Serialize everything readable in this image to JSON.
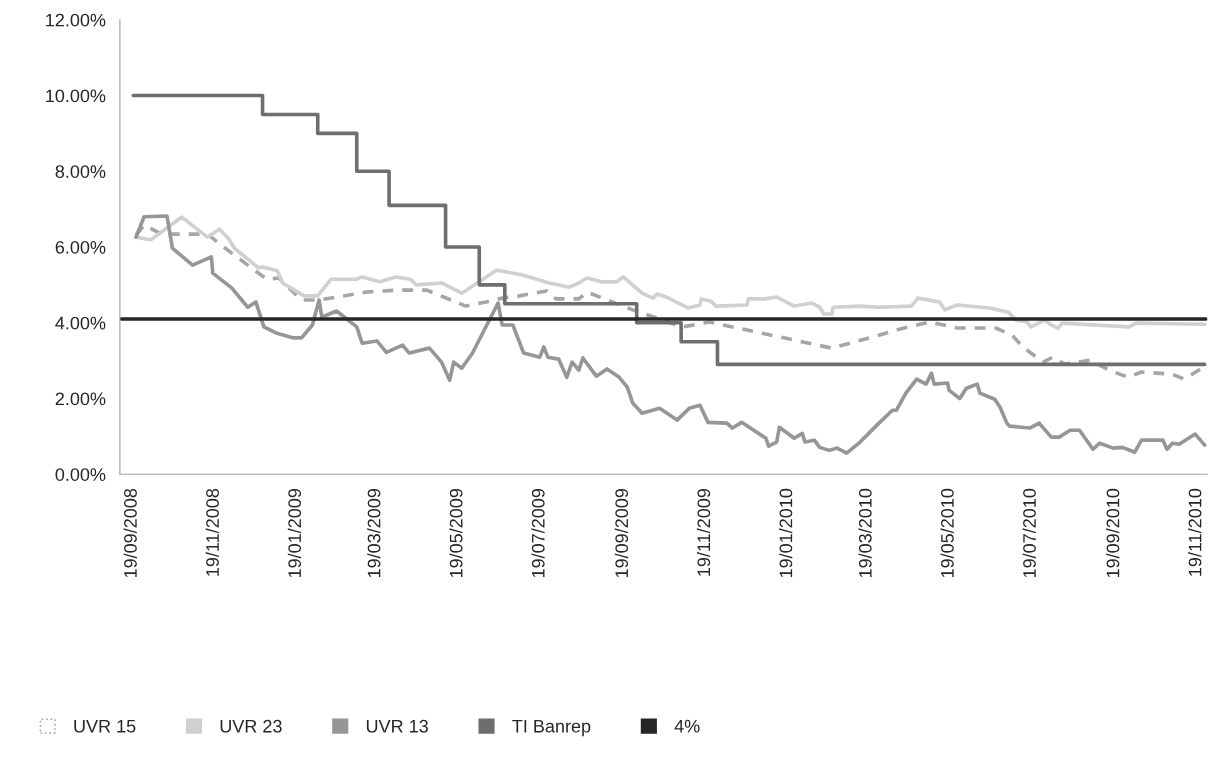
{
  "chart_data": {
    "type": "line",
    "xlim": [
      "2008-09-10",
      "2010-11-27"
    ],
    "xticks": [
      {
        "value": "2008-09-19",
        "label": "19/09/2008"
      },
      {
        "value": "2008-11-19",
        "label": "19/11/2008"
      },
      {
        "value": "2009-01-19",
        "label": "19/01/2009"
      },
      {
        "value": "2009-03-19",
        "label": "19/03/2009"
      },
      {
        "value": "2009-05-19",
        "label": "19/05/2009"
      },
      {
        "value": "2009-07-19",
        "label": "19/07/2009"
      },
      {
        "value": "2009-09-19",
        "label": "19/09/2009"
      },
      {
        "value": "2009-11-19",
        "label": "19/11/2009"
      },
      {
        "value": "2010-01-19",
        "label": "19/01/2010"
      },
      {
        "value": "2010-03-19",
        "label": "19/03/2010"
      },
      {
        "value": "2010-05-19",
        "label": "19/05/2010"
      },
      {
        "value": "2010-07-19",
        "label": "19/07/2010"
      },
      {
        "value": "2010-09-19",
        "label": "19/09/2010"
      },
      {
        "value": "2010-11-19",
        "label": "19/11/2010"
      }
    ],
    "ylim": [
      0,
      12
    ],
    "yticks": [
      {
        "value": 0,
        "label": "0.00%"
      },
      {
        "value": 2,
        "label": "2.00%"
      },
      {
        "value": 4,
        "label": "4.00%"
      },
      {
        "value": 6,
        "label": "6.00%"
      },
      {
        "value": 8,
        "label": "8.00%"
      },
      {
        "value": 10,
        "label": "10.00%"
      },
      {
        "value": 12,
        "label": "12.00%"
      }
    ],
    "grid": false,
    "legend": "bottom left",
    "marker": "none",
    "series": [
      {
        "name": "UVR 15",
        "color": "#a6a6a6",
        "line_style": "dashed",
        "x": [
          "2008-09-22",
          "2008-09-28",
          "2008-10-11",
          "2008-11-14",
          "2008-12-02",
          "2008-12-22",
          "2008-12-28",
          "2009-01-06",
          "2009-01-23",
          "2009-02-05",
          "2009-03-12",
          "2009-04-03",
          "2009-04-26",
          "2009-05-25",
          "2009-06-09",
          "2009-06-21",
          "2009-07-04",
          "2009-07-24",
          "2009-07-31",
          "2009-08-17",
          "2009-08-23",
          "2009-09-26",
          "2009-11-02",
          "2009-11-22",
          "2010-02-21",
          "2010-03-28",
          "2010-04-12",
          "2010-05-05",
          "2010-05-25",
          "2010-06-23",
          "2010-07-05",
          "2010-07-13",
          "2010-07-28",
          "2010-08-04",
          "2010-08-13",
          "2010-09-01",
          "2010-09-15",
          "2010-09-29",
          "2010-10-09",
          "2010-11-01",
          "2010-11-10",
          "2010-11-25"
        ],
        "values": [
          6.32,
          6.58,
          6.34,
          6.34,
          5.84,
          5.31,
          5.15,
          5.18,
          4.6,
          4.6,
          4.81,
          4.86,
          4.86,
          4.44,
          4.55,
          4.65,
          4.71,
          4.84,
          4.63,
          4.63,
          4.81,
          4.34,
          3.89,
          4.02,
          3.33,
          3.67,
          3.83,
          4.02,
          3.86,
          3.86,
          3.67,
          3.36,
          2.96,
          3.09,
          2.91,
          3.01,
          2.75,
          2.56,
          2.7,
          2.64,
          2.51,
          2.85
        ]
      },
      {
        "name": "UVR 23",
        "color": "#d0d0d0",
        "line_style": "solid",
        "x": [
          "2008-09-22",
          "2008-10-03",
          "2008-10-26",
          "2008-11-14",
          "2008-11-23",
          "2008-11-30",
          "2008-12-04",
          "2008-12-22",
          "2008-12-25",
          "2009-01-05",
          "2009-01-09",
          "2009-01-25",
          "2009-02-04",
          "2009-02-14",
          "2009-03-05",
          "2009-03-09",
          "2009-03-22",
          "2009-04-03",
          "2009-04-14",
          "2009-04-18",
          "2009-05-07",
          "2009-05-22",
          "2009-06-17",
          "2009-07-06",
          "2009-07-26",
          "2009-08-10",
          "2009-08-17",
          "2009-08-23",
          "2009-09-03",
          "2009-09-14",
          "2009-09-19",
          "2009-10-03",
          "2009-10-11",
          "2009-10-14",
          "2009-10-21",
          "2009-11-06",
          "2009-11-15",
          "2009-11-16",
          "2009-11-23",
          "2009-11-27",
          "2009-12-20",
          "2009-12-21",
          "2010-01-02",
          "2010-01-11",
          "2010-01-24",
          "2010-02-06",
          "2010-02-12",
          "2010-02-15",
          "2010-02-21",
          "2010-02-22",
          "2010-03-14",
          "2010-03-28",
          "2010-04-21",
          "2010-04-26",
          "2010-05-12",
          "2010-05-16",
          "2010-05-25",
          "2010-06-18",
          "2010-07-02",
          "2010-07-08",
          "2010-07-16",
          "2010-07-19",
          "2010-07-29",
          "2010-08-03",
          "2010-08-08",
          "2010-08-11",
          "2010-09-30",
          "2010-10-05",
          "2010-11-25"
        ],
        "values": [
          6.26,
          6.19,
          6.79,
          6.26,
          6.47,
          6.21,
          5.97,
          5.45,
          5.47,
          5.37,
          5.05,
          4.71,
          4.71,
          5.15,
          5.15,
          5.21,
          5.08,
          5.21,
          5.15,
          5.0,
          5.05,
          4.78,
          5.39,
          5.26,
          5.05,
          4.94,
          5.05,
          5.18,
          5.08,
          5.08,
          5.21,
          4.78,
          4.65,
          4.76,
          4.68,
          4.39,
          4.47,
          4.63,
          4.57,
          4.44,
          4.47,
          4.63,
          4.63,
          4.68,
          4.44,
          4.52,
          4.41,
          4.23,
          4.23,
          4.41,
          4.44,
          4.41,
          4.44,
          4.65,
          4.55,
          4.34,
          4.47,
          4.39,
          4.28,
          4.07,
          4.02,
          3.89,
          4.07,
          3.94,
          3.86,
          3.99,
          3.89,
          3.99,
          3.96
        ]
      },
      {
        "name": "UVR 13",
        "color": "#969696",
        "line_style": "solid",
        "x": [
          "2008-09-22",
          "2008-09-28",
          "2008-10-15",
          "2008-10-19",
          "2008-11-03",
          "2008-11-17",
          "2008-11-18",
          "2008-12-02",
          "2008-12-14",
          "2008-12-20",
          "2008-12-26",
          "2009-01-04",
          "2009-01-17",
          "2009-01-23",
          "2009-01-31",
          "2009-02-05",
          "2009-02-07",
          "2009-02-18",
          "2009-03-05",
          "2009-03-09",
          "2009-03-20",
          "2009-03-27",
          "2009-04-08",
          "2009-04-13",
          "2009-04-28",
          "2009-05-07",
          "2009-05-13",
          "2009-05-16",
          "2009-05-22",
          "2009-05-30",
          "2009-06-18",
          "2009-06-21",
          "2009-06-29",
          "2009-07-07",
          "2009-07-19",
          "2009-07-22",
          "2009-07-25",
          "2009-08-02",
          "2009-08-08",
          "2009-08-12",
          "2009-08-17",
          "2009-08-20",
          "2009-08-30",
          "2009-09-07",
          "2009-09-16",
          "2009-09-22",
          "2009-09-26",
          "2009-10-03",
          "2009-10-16",
          "2009-10-29",
          "2009-11-07",
          "2009-11-15",
          "2009-11-21",
          "2009-12-05",
          "2009-12-09",
          "2009-12-16",
          "2010-01-03",
          "2010-01-05",
          "2010-01-11",
          "2010-01-13",
          "2010-01-24",
          "2010-01-30",
          "2010-02-01",
          "2010-02-08",
          "2010-02-12",
          "2010-02-19",
          "2010-02-25",
          "2010-03-04",
          "2010-03-14",
          "2010-03-28",
          "2010-04-07",
          "2010-04-10",
          "2010-04-17",
          "2010-04-25",
          "2010-05-02",
          "2010-05-06",
          "2010-05-08",
          "2010-05-18",
          "2010-05-19",
          "2010-05-27",
          "2010-06-01",
          "2010-06-09",
          "2010-06-11",
          "2010-06-22",
          "2010-06-26",
          "2010-07-01",
          "2010-07-03",
          "2010-07-18",
          "2010-07-25",
          "2010-08-03",
          "2010-08-09",
          "2010-08-17",
          "2010-08-24",
          "2010-09-03",
          "2010-09-08",
          "2010-09-18",
          "2010-09-25",
          "2010-10-04",
          "2010-10-09",
          "2010-10-25",
          "2010-10-28",
          "2010-11-01",
          "2010-11-06",
          "2010-11-18",
          "2010-11-25"
        ],
        "values": [
          6.26,
          6.8,
          6.82,
          5.97,
          5.52,
          5.74,
          5.31,
          4.92,
          4.41,
          4.55,
          3.89,
          3.73,
          3.6,
          3.6,
          3.94,
          4.6,
          4.15,
          4.31,
          3.89,
          3.46,
          3.52,
          3.22,
          3.41,
          3.2,
          3.33,
          2.96,
          2.48,
          2.96,
          2.8,
          3.2,
          4.52,
          3.94,
          3.94,
          3.2,
          3.09,
          3.36,
          3.09,
          3.04,
          2.56,
          2.96,
          2.75,
          3.07,
          2.59,
          2.78,
          2.56,
          2.3,
          1.88,
          1.61,
          1.74,
          1.43,
          1.74,
          1.82,
          1.37,
          1.35,
          1.22,
          1.37,
          0.95,
          0.74,
          0.85,
          1.24,
          0.95,
          1.08,
          0.85,
          0.9,
          0.71,
          0.63,
          0.69,
          0.56,
          0.85,
          1.35,
          1.69,
          1.69,
          2.14,
          2.51,
          2.38,
          2.67,
          2.38,
          2.41,
          2.22,
          2.0,
          2.27,
          2.38,
          2.14,
          1.98,
          1.77,
          1.35,
          1.27,
          1.22,
          1.35,
          0.98,
          0.98,
          1.16,
          1.16,
          0.66,
          0.82,
          0.69,
          0.71,
          0.58,
          0.9,
          0.9,
          0.66,
          0.82,
          0.79,
          1.06,
          0.77
        ]
      },
      {
        "name": "TI Banrep",
        "type": "step",
        "color": "#6e6e6e",
        "line_style": "solid",
        "x": [
          "2008-09-20",
          "2008-12-25",
          "2009-02-04",
          "2009-03-05",
          "2009-03-29",
          "2009-05-10",
          "2009-06-04",
          "2009-06-23",
          "2009-09-29",
          "2009-11-01",
          "2009-11-28",
          "2010-11-25"
        ],
        "values": [
          10.0,
          9.5,
          9.0,
          8.0,
          7.1,
          6.0,
          5.0,
          4.5,
          4.0,
          3.5,
          2.9,
          2.9
        ]
      },
      {
        "name": "4%",
        "color": "#262626",
        "line_style": "solid",
        "x": [
          "2008-09-11",
          "2010-11-26"
        ],
        "values": [
          4.1,
          4.1
        ]
      }
    ]
  }
}
